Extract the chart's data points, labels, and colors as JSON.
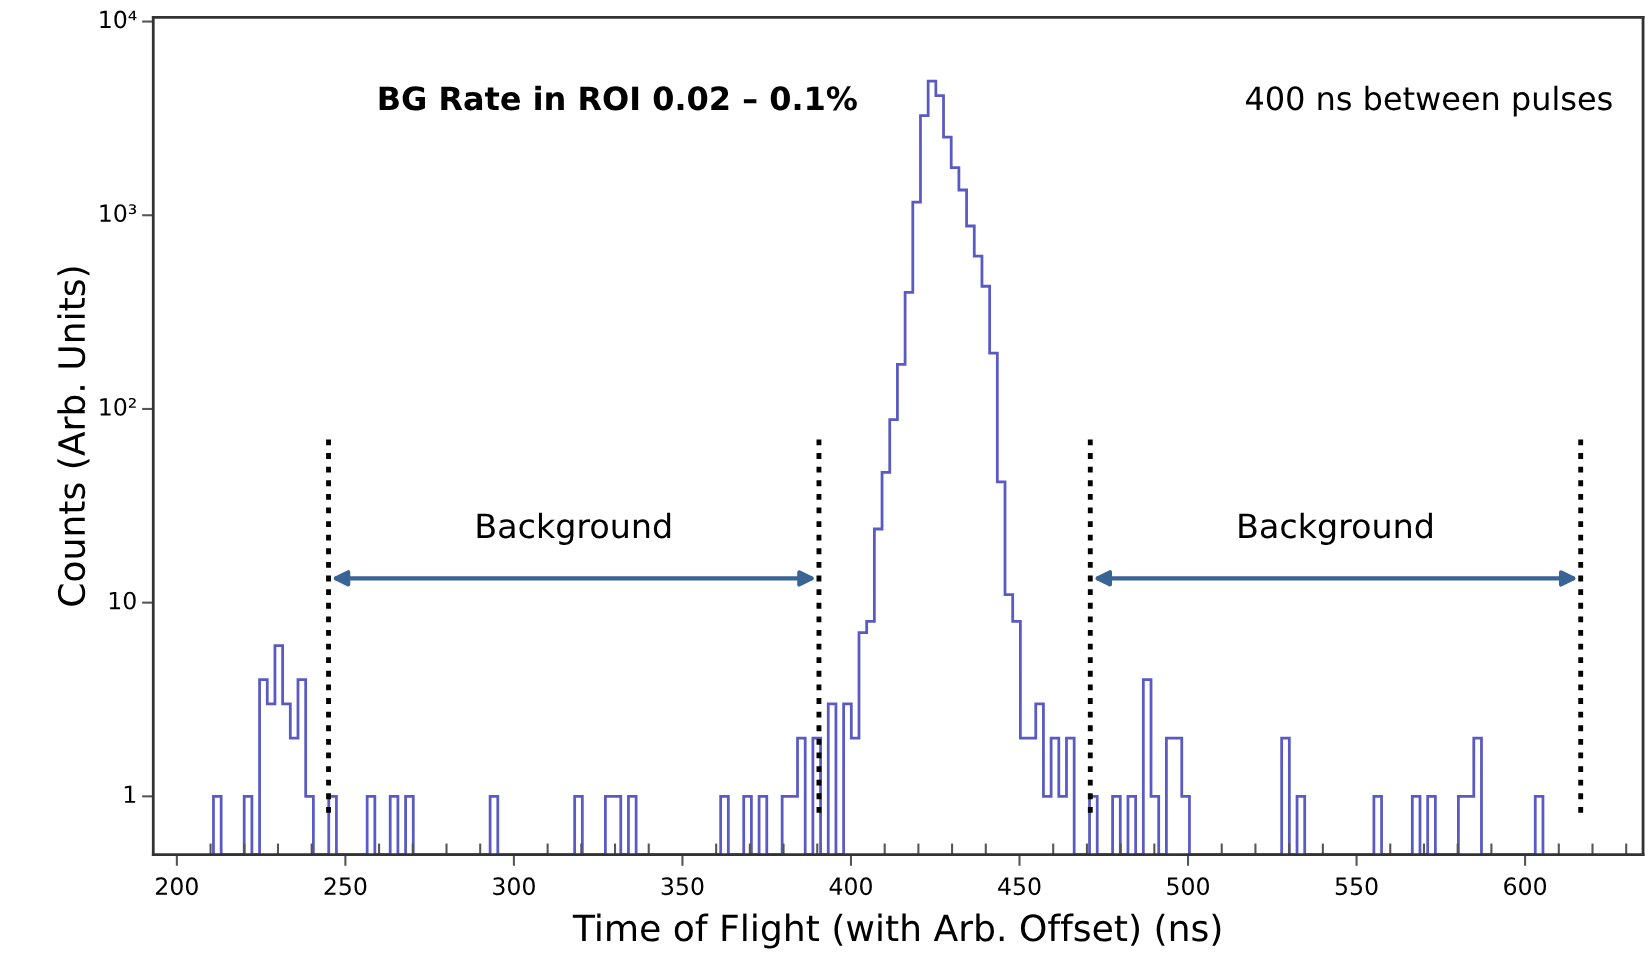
{
  "chart_data": {
    "type": "histogram",
    "xlabel": "Time of Flight (with Arb. Offset) (ns)",
    "ylabel": "Counts (Arb. Units)",
    "color": "#5a5ac4",
    "bins": [
      210.86,
      213.14,
      215.42,
      217.7,
      219.98,
      222.26,
      224.54,
      226.82,
      229.1,
      231.38,
      233.66,
      235.94,
      238.22,
      240.5,
      242.78,
      245.06,
      247.34,
      249.62,
      251.9,
      254.18,
      256.46,
      258.74,
      261.02,
      263.3,
      265.58,
      267.86,
      270.14,
      272.42,
      274.7,
      276.98,
      279.26,
      281.54,
      283.82,
      286.1,
      288.38,
      290.66,
      292.94,
      295.22,
      297.5,
      299.78,
      302.06,
      304.34,
      306.62,
      308.9,
      311.18,
      313.46,
      315.74,
      318.02,
      320.3,
      322.58,
      324.86,
      327.14,
      329.42,
      331.7,
      333.98,
      336.26,
      338.54,
      340.82,
      343.1,
      345.38,
      347.66,
      349.94,
      352.22,
      354.5,
      356.78,
      359.06,
      361.34,
      363.62,
      365.9,
      368.18,
      370.46,
      372.74,
      375.02,
      377.3,
      379.58,
      381.86,
      384.14,
      386.42,
      388.7,
      390.98,
      393.26,
      395.54,
      397.82,
      400.1,
      402.38,
      404.66,
      406.94,
      409.22,
      411.5,
      413.78,
      416.06,
      418.34,
      420.62,
      422.9,
      425.18,
      427.46,
      429.74,
      432.02,
      434.3,
      436.58,
      438.86,
      441.14,
      443.42,
      445.7,
      447.98,
      450.26,
      452.54,
      454.82,
      457.1,
      459.38,
      461.66,
      463.94,
      466.22,
      468.5,
      470.78,
      473.06,
      475.34,
      477.62,
      479.9,
      482.18,
      484.46,
      486.74,
      489.02,
      491.3,
      493.58,
      495.86,
      498.14,
      500.42,
      502.7,
      504.98,
      507.26,
      509.54,
      511.82,
      514.1,
      516.38,
      518.66,
      520.94,
      523.22,
      525.5,
      527.78,
      530.06,
      532.34,
      534.62,
      536.9,
      539.18,
      541.46,
      543.74,
      546.02,
      548.3,
      550.58,
      552.86,
      555.14,
      557.42,
      559.7,
      561.98,
      564.26,
      566.54,
      568.82,
      571.1,
      573.38,
      575.66,
      577.94,
      580.22,
      582.5,
      584.78,
      587.06,
      589.34,
      591.62,
      593.9,
      596.18,
      598.46,
      600.74,
      603.02,
      605.3
    ],
    "values": [
      1,
      null,
      null,
      null,
      1,
      null,
      4,
      3,
      6,
      3,
      2,
      4,
      1,
      null,
      null,
      1,
      null,
      null,
      null,
      null,
      1,
      null,
      null,
      1,
      null,
      1,
      null,
      null,
      null,
      null,
      null,
      null,
      null,
      null,
      null,
      null,
      1,
      null,
      null,
      null,
      null,
      null,
      null,
      null,
      null,
      null,
      null,
      1,
      null,
      null,
      null,
      1,
      1,
      null,
      1,
      null,
      null,
      null,
      null,
      null,
      null,
      null,
      null,
      null,
      null,
      null,
      1,
      null,
      null,
      1,
      null,
      1,
      null,
      null,
      1,
      1,
      2,
      null,
      2,
      null,
      3,
      null,
      3,
      2,
      7,
      8,
      24,
      47,
      88,
      170,
      400,
      1170,
      3270,
      4920,
      4140,
      2530,
      1760,
      1350,
      880,
      615,
      430,
      194,
      42,
      11,
      8,
      2,
      2,
      3,
      1,
      2,
      1,
      2,
      null,
      null,
      1,
      null,
      null,
      1,
      null,
      1,
      null,
      4,
      1,
      null,
      2,
      2,
      1,
      null,
      null,
      null,
      null,
      null,
      null,
      null,
      null,
      null,
      null,
      null,
      null,
      2,
      null,
      1,
      null,
      null,
      null,
      null,
      null,
      null,
      null,
      null,
      null,
      1,
      null,
      null,
      null,
      null,
      1,
      null,
      1,
      null,
      null,
      null,
      1,
      1,
      2,
      null,
      null,
      null,
      null,
      null,
      null,
      null,
      1
    ],
    "log": true,
    "xlim": [
      193,
      635
    ],
    "ylim": [
      0.5,
      10500
    ],
    "xticks": [
      200,
      250,
      300,
      350,
      400,
      450,
      500,
      550,
      600,
      {
        "value": 210,
        "label": null
      },
      {
        "value": 220,
        "label": null
      },
      {
        "value": 230,
        "label": null
      },
      {
        "value": 240,
        "label": null
      },
      {
        "value": 260,
        "label": null
      },
      {
        "value": 270,
        "label": null
      },
      {
        "value": 280,
        "label": null
      },
      {
        "value": 290,
        "label": null
      },
      {
        "value": 310,
        "label": null
      },
      {
        "value": 320,
        "label": null
      },
      {
        "value": 330,
        "label": null
      },
      {
        "value": 340,
        "label": null
      },
      {
        "value": 360,
        "label": null
      },
      {
        "value": 370,
        "label": null
      },
      {
        "value": 380,
        "label": null
      },
      {
        "value": 390,
        "label": null
      },
      {
        "value": 410,
        "label": null
      },
      {
        "value": 420,
        "label": null
      },
      {
        "value": 430,
        "label": null
      },
      {
        "value": 440,
        "label": null
      },
      {
        "value": 460,
        "label": null
      },
      {
        "value": 470,
        "label": null
      },
      {
        "value": 480,
        "label": null
      },
      {
        "value": 490,
        "label": null
      },
      {
        "value": 510,
        "label": null
      },
      {
        "value": 520,
        "label": null
      },
      {
        "value": 530,
        "label": null
      },
      {
        "value": 540,
        "label": null
      },
      {
        "value": 560,
        "label": null
      },
      {
        "value": 570,
        "label": null
      },
      {
        "value": 580,
        "label": null
      },
      {
        "value": 590,
        "label": null
      },
      {
        "value": 610,
        "label": null
      },
      {
        "value": 620,
        "label": null
      },
      {
        "value": 630,
        "label": null
      }
    ],
    "yticks": [
      1,
      10,
      {
        "value": 100,
        "label": "10²"
      },
      {
        "value": 1000,
        "label": "10³"
      },
      {
        "value": 10000,
        "label": "10⁴"
      }
    ],
    "ref_lines": [
      {
        "axis": "x",
        "value": 245,
        "color": "#000000",
        "line_style": "dotted"
      },
      {
        "axis": "x",
        "value": 390.5,
        "color": "#000000",
        "line_style": "dotted"
      },
      {
        "axis": "x",
        "value": 471,
        "color": "#000000",
        "line_style": "dotted"
      },
      {
        "axis": "x",
        "value": 616.5,
        "color": "#000000",
        "line_style": "dotted"
      }
    ],
    "annotations": [
      "BG Rate in ROI 0.02 – 0.1%",
      "400 ns between pulses",
      "Background",
      "Background"
    ]
  }
}
